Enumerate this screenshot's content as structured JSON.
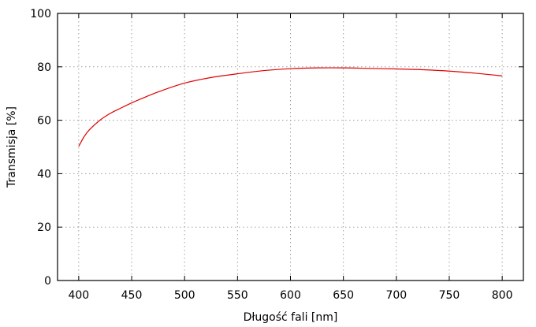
{
  "chart_data": {
    "type": "line",
    "xlabel": "Długość fali [nm]",
    "ylabel": "Transmisja [%]",
    "xlim": [
      380,
      820
    ],
    "ylim": [
      0,
      100
    ],
    "xticks": [
      400,
      450,
      500,
      550,
      600,
      650,
      700,
      750,
      800
    ],
    "yticks": [
      0,
      20,
      40,
      60,
      80,
      100
    ],
    "grid": true,
    "series": [
      {
        "color": "#e00000",
        "x": [
          400,
          405,
          410,
          420,
          430,
          440,
          450,
          460,
          475,
          500,
          525,
          550,
          575,
          600,
          625,
          650,
          675,
          700,
          725,
          750,
          775,
          800
        ],
        "y": [
          50.2,
          53.8,
          56.4,
          60.0,
          62.6,
          64.6,
          66.5,
          68.2,
          70.6,
          73.9,
          76.0,
          77.4,
          78.6,
          79.3,
          79.6,
          79.6,
          79.4,
          79.2,
          78.9,
          78.4,
          77.6,
          76.6
        ]
      }
    ]
  }
}
